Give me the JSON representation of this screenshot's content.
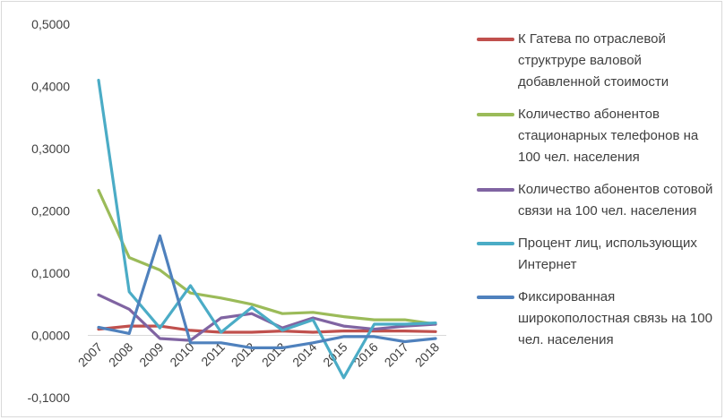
{
  "chart_data": {
    "type": "line",
    "x": [
      "2007",
      "2008",
      "2009",
      "2010",
      "2011",
      "2012",
      "2013",
      "2014",
      "2015",
      "2016",
      "2017",
      "2018"
    ],
    "ylim": [
      -0.1,
      0.5
    ],
    "yticks": [
      "0,5000",
      "0,4000",
      "0,3000",
      "0,2000",
      "0,1000",
      "0,0000",
      "-0,1000"
    ],
    "ytick_values": [
      0.5,
      0.4,
      0.3,
      0.2,
      0.1,
      0.0,
      -0.1
    ],
    "grid": false,
    "legend_position": "right",
    "series": [
      {
        "name": "К Гатева по отраслевой структруре валовой добавленной стоимости",
        "color": "#c0504d",
        "values": [
          0.01,
          0.015,
          0.015,
          0.008,
          0.005,
          0.005,
          0.007,
          0.005,
          0.007,
          0.007,
          0.007,
          0.006
        ]
      },
      {
        "name": "Количество абонентов стационарных телефонов на 100 чел. населения",
        "color": "#9bbb59",
        "values": [
          0.233,
          0.125,
          0.105,
          0.068,
          0.06,
          0.05,
          0.035,
          0.037,
          0.03,
          0.025,
          0.025,
          0.018
        ]
      },
      {
        "name": "Количество абонентов сотовой связи на 100 чел. населения",
        "color": "#8064a2",
        "values": [
          0.065,
          0.042,
          -0.005,
          -0.008,
          0.028,
          0.035,
          0.012,
          0.028,
          0.015,
          0.01,
          0.015,
          0.018
        ]
      },
      {
        "name": "Процент лиц, использующих Интернет",
        "color": "#4bacc6",
        "values": [
          0.41,
          0.07,
          0.012,
          0.08,
          0.005,
          0.045,
          0.008,
          0.025,
          -0.068,
          0.018,
          0.018,
          0.02
        ]
      },
      {
        "name": "Фиксированная широкополостная связь на 100 чел. населения",
        "color": "#4f81bd",
        "values": [
          0.013,
          0.003,
          0.16,
          -0.012,
          -0.012,
          -0.02,
          -0.02,
          -0.012,
          -0.002,
          -0.002,
          -0.01,
          -0.005
        ]
      }
    ]
  }
}
